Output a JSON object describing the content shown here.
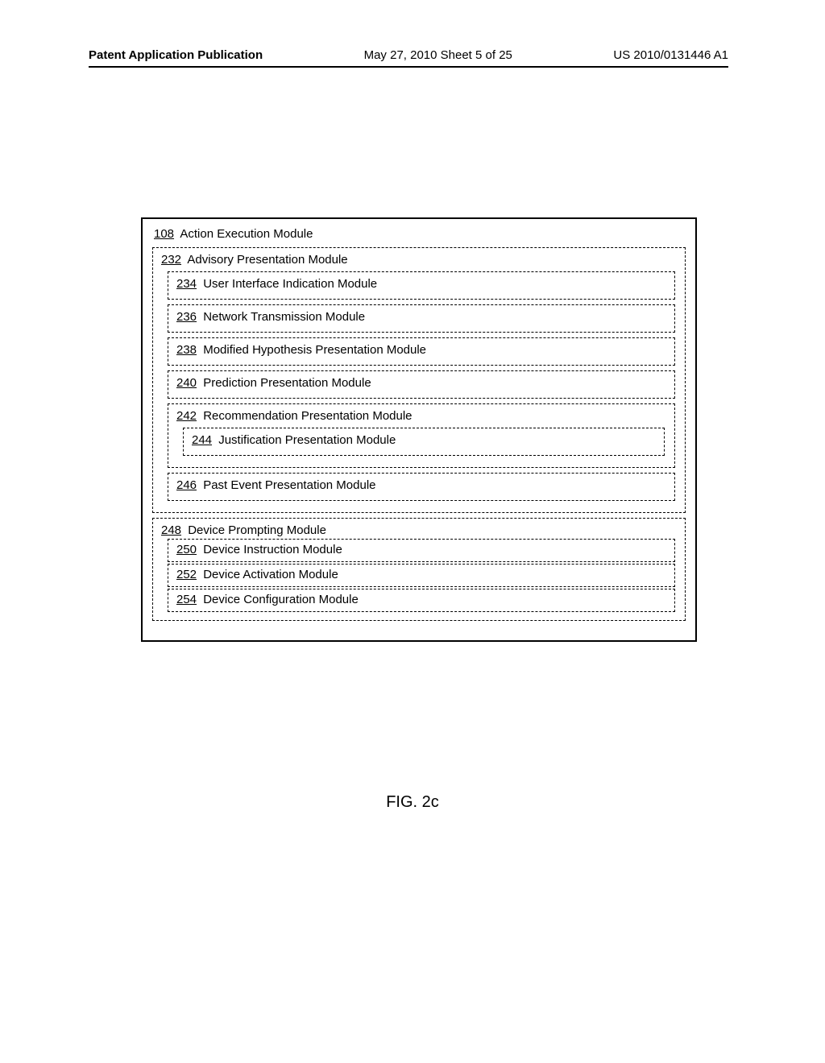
{
  "header": {
    "left": "Patent Application Publication",
    "mid": "May 27, 2010  Sheet 5 of 25",
    "right": "US 2010/0131446 A1"
  },
  "outer": {
    "num": "108",
    "title": "Action Execution Module"
  },
  "advisory": {
    "num": "232",
    "title": "Advisory Presentation Module",
    "ui": {
      "num": "234",
      "title": "User Interface Indication Module"
    },
    "net": {
      "num": "236",
      "title": "Network Transmission Module"
    },
    "hyp": {
      "num": "238",
      "title": "Modified Hypothesis Presentation Module"
    },
    "pred": {
      "num": "240",
      "title": "Prediction Presentation Module"
    },
    "rec": {
      "num": "242",
      "title": "Recommendation Presentation Module"
    },
    "just": {
      "num": "244",
      "title": "Justification Presentation Module"
    },
    "past": {
      "num": "246",
      "title": "Past Event Presentation Module"
    }
  },
  "prompt": {
    "num": "248",
    "title": "Device Prompting Module",
    "instr": {
      "num": "250",
      "title": "Device Instruction Module"
    },
    "activ": {
      "num": "252",
      "title": "Device Activation Module"
    },
    "config": {
      "num": "254",
      "title": "Device Configuration Module"
    }
  },
  "caption": "FIG. 2c"
}
